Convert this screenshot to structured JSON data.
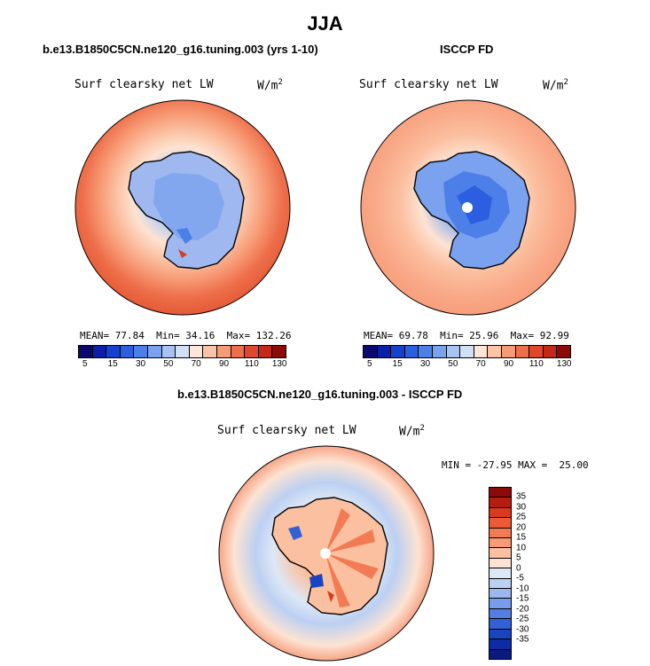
{
  "title": "JJA",
  "panels": {
    "model": {
      "title": "b.e13.B1850C5CN.ne120_g16.tuning.003 (yrs 1-10)",
      "variable": "Surf clearsky net LW",
      "units": "W/m",
      "units_exp": "2",
      "mean_label": "MEAN=",
      "mean": "77.84",
      "min_label": "Min=",
      "min": "34.16",
      "max_label": "Max=",
      "max": "132.26"
    },
    "obs": {
      "title": "ISCCP FD",
      "variable": "Surf clearsky net LW",
      "units": "W/m",
      "units_exp": "2",
      "mean_label": "MEAN=",
      "mean": "69.78",
      "min_label": "Min=",
      "min": "25.96",
      "max_label": "Max=",
      "max": "92.99"
    },
    "diff": {
      "title": "b.e13.B1850C5CN.ne120_g16.tuning.003 - ISCCP FD",
      "variable": "Surf clearsky net LW",
      "units": "W/m",
      "units_exp": "2",
      "minmax": "MIN = -27.95 MAX =  25.00"
    }
  },
  "colorbar_abs": {
    "colors": [
      "#0a0a6e",
      "#0b1fa8",
      "#1740cf",
      "#2b5fe0",
      "#4d7fe8",
      "#7aa2ef",
      "#a9c2f2",
      "#d2e0f5",
      "#fde6d8",
      "#fbc4a6",
      "#f79b76",
      "#ee6f4b",
      "#e0472c",
      "#c42818",
      "#8c0a08"
    ],
    "ticks": [
      "5",
      "15",
      "30",
      "50",
      "70",
      "90",
      "110",
      "130"
    ]
  },
  "colorbar_diff": {
    "colors": [
      "#8c0a08",
      "#b51d10",
      "#d93a1e",
      "#ec5a35",
      "#f37b53",
      "#f79b76",
      "#fbc0a0",
      "#fde3d2",
      "#dde8f6",
      "#bcd0f2",
      "#9ab7ee",
      "#779ce9",
      "#547fe2",
      "#3460d6",
      "#1b44c0",
      "#0d2ca3",
      "#0a1a7f"
    ],
    "ticks": [
      "35",
      "30",
      "25",
      "20",
      "15",
      "10",
      "5",
      "0",
      "-5",
      "-10",
      "-15",
      "-20",
      "-25",
      "-30",
      "-35"
    ]
  },
  "icons": [
    "antarctica-map-icon"
  ]
}
